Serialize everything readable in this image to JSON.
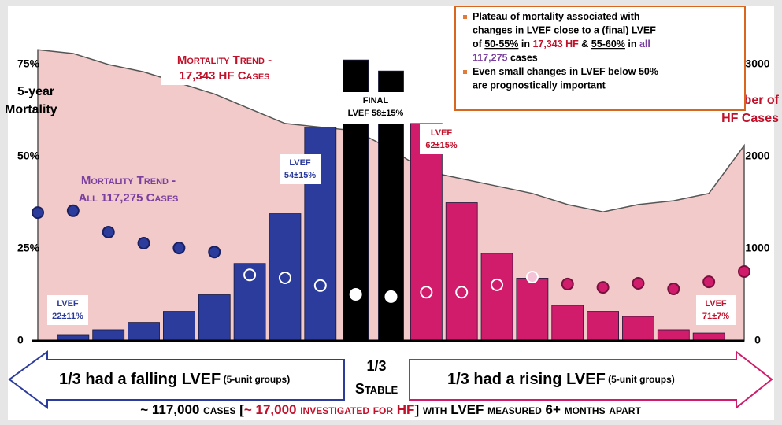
{
  "chart_data": {
    "type": "combo",
    "y_label_lines": [
      "5-year",
      "Mortality"
    ],
    "y2_label_lines": [
      "Number of",
      "HF Cases"
    ],
    "ylim": [
      0,
      75
    ],
    "yticks": [
      0,
      {
        "value": 25,
        "label": "25%"
      },
      {
        "value": 50,
        "label": "50%"
      },
      {
        "value": 75,
        "label": "75%"
      }
    ],
    "y2lim": [
      0,
      3000
    ],
    "y2ticks": [
      0,
      1000,
      2000,
      3000
    ],
    "series": [
      {
        "type": "area",
        "label_lines": [
          "Mortality Trend -",
          "17,343 HF Cases"
        ],
        "color": "#f2caca",
        "edge": "#555555",
        "label_color": "#c0102a",
        "values": [
          79,
          78,
          75,
          73,
          70,
          67,
          63,
          59,
          58,
          57,
          52,
          46,
          44,
          42,
          40,
          37,
          35,
          37,
          38,
          40,
          53
        ]
      },
      {
        "type": "scatter",
        "label_lines": [
          "Mortality Trend -",
          "All 117,275 Cases"
        ],
        "label_color": "#7b3fa0",
        "values": [
          34.8,
          35.3,
          29.5,
          26.5,
          25.2,
          24.1,
          17.9,
          17.1,
          15,
          12.6,
          12,
          13.2,
          13.2,
          15.2,
          17.3,
          15.4,
          14.5,
          15.6,
          14.1,
          16,
          18.8
        ],
        "fills": [
          "#2c3c9c",
          "#2c3c9c",
          "#2c3c9c",
          "#2c3c9c",
          "#2c3c9c",
          "#2c3c9c",
          "none",
          "none",
          "none",
          "#ffffff",
          "#ffffff",
          "none",
          "none",
          "none",
          "#f5c2d8",
          "#d01c6a",
          "#d01c6a",
          "#d01c6a",
          "#d01c6a",
          "#d01c6a",
          "#d01c6a"
        ],
        "edges": [
          "#1a2060",
          "#1a2060",
          "#1a2060",
          "#1a2060",
          "#1a2060",
          "#1a2060",
          "#ffffff",
          "#ffffff",
          "#ffffff",
          "#ffffff",
          "#ffffff",
          "#ffffff",
          "#ffffff",
          "#ffffff",
          "#ffffff",
          "#7a1040",
          "#7a1040",
          "#7a1040",
          "#7a1040",
          "#7a1040",
          "#7a1040"
        ]
      },
      {
        "type": "bar",
        "axis": "y2",
        "values": [
          null,
          60,
          120,
          200,
          320,
          500,
          840,
          1380,
          2320,
          3050,
          2930,
          2360,
          1500,
          950,
          680,
          385,
          320,
          265,
          120,
          85,
          null
        ],
        "colors": [
          null,
          "#2c3c9c",
          "#2c3c9c",
          "#2c3c9c",
          "#2c3c9c",
          "#2c3c9c",
          "#2c3c9c",
          "#2c3c9c",
          "#2c3c9c",
          "#000000",
          "#000000",
          "#d01c6a",
          "#d01c6a",
          "#d01c6a",
          "#d01c6a",
          "#d01c6a",
          "#d01c6a",
          "#d01c6a",
          "#d01c6a",
          "#d01c6a",
          null
        ]
      }
    ],
    "annotations": [
      {
        "lines": [
          "LVEF",
          "22±11%"
        ],
        "color": "#2c3c9c"
      },
      {
        "lines": [
          "LVEF",
          "54±15%"
        ],
        "color": "#2c3c9c"
      },
      {
        "lines": [
          "FINAL",
          "LVEF 58±15%"
        ],
        "color": "#000000"
      },
      {
        "lines": [
          "LVEF",
          "62±15%"
        ],
        "color": "#c0102a"
      },
      {
        "lines": [
          "LVEF",
          "71±7%"
        ],
        "color": "#c0102a"
      }
    ],
    "callout": [
      [
        [
          {
            "text": "Plateau of mortality associated with"
          }
        ],
        [
          {
            "text": "changes in LVEF close to a (final) LVEF"
          }
        ],
        [
          {
            "text": "of "
          },
          {
            "text": "50-55%",
            "underline": true
          },
          {
            "text": " in "
          },
          {
            "text": "17,343 HF",
            "color": "#c0102a"
          },
          {
            "text": " & "
          },
          {
            "text": "55-60%",
            "underline": true
          },
          {
            "text": " in "
          },
          {
            "text": "all",
            "color": "#7b3fa0"
          }
        ],
        [
          {
            "text": "117,275",
            "color": "#7b3fa0"
          },
          {
            "text": " cases"
          }
        ]
      ],
      [
        [
          {
            "text": "Even small changes in LVEF below 50%"
          }
        ],
        [
          {
            "text": "are prognostically important"
          }
        ]
      ]
    ],
    "arrows": {
      "left": [
        "1/3 had a falling LVEF",
        " (5-unit groups)"
      ],
      "middle": [
        "1/3",
        "Stable"
      ],
      "right": [
        "1/3 had a rising LVEF",
        " (5-unit groups)"
      ]
    },
    "footer": [
      {
        "text": "~ 117,000 cases ["
      },
      {
        "text": "~ 17,000 investigated for HF",
        "color": "#c0102a"
      },
      {
        "text": "] with LVEF measured 6+ months apart"
      }
    ]
  }
}
